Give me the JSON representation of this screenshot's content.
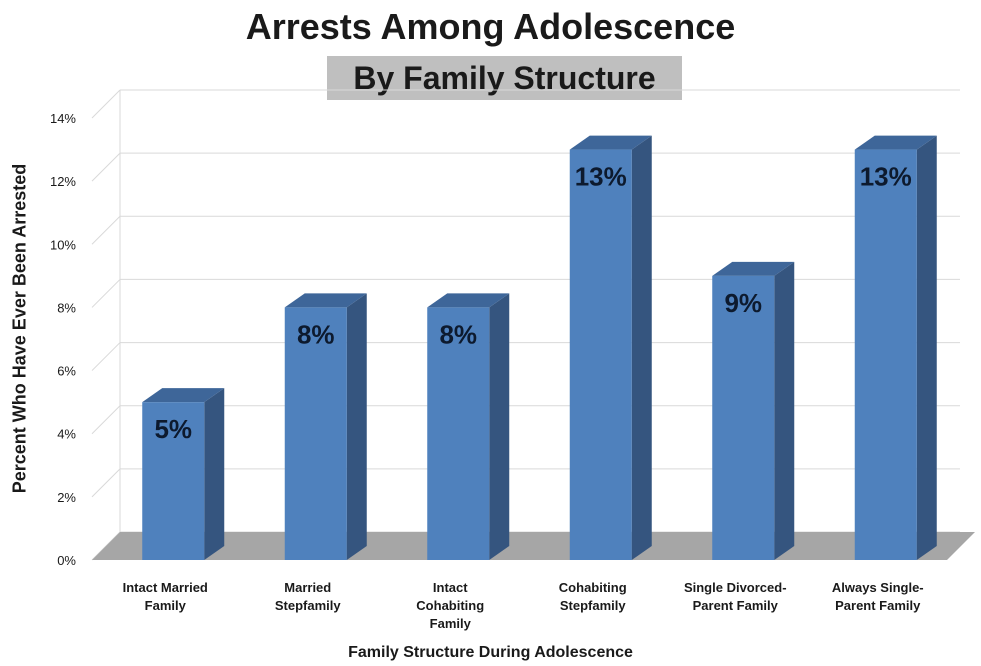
{
  "chart_data": {
    "type": "bar",
    "title": "Arrests Among Adolescence",
    "subtitle": "By Family Structure",
    "xlabel": "Family Structure During Adolescence",
    "ylabel": "Percent Who Have Ever Been Arrested",
    "categories": [
      [
        "Intact Married",
        "Family"
      ],
      [
        "Married",
        "Stepfamily"
      ],
      [
        "Intact",
        "Cohabiting",
        "Family"
      ],
      [
        "Cohabiting",
        "Stepfamily"
      ],
      [
        "Single Divorced-",
        "Parent Family"
      ],
      [
        "Always Single-",
        "Parent Family"
      ]
    ],
    "values": [
      5,
      8,
      8,
      13,
      9,
      13
    ],
    "data_labels": [
      "5%",
      "8%",
      "8%",
      "13%",
      "9%",
      "13%"
    ],
    "yticks": [
      "0%",
      "2%",
      "4%",
      "6%",
      "8%",
      "10%",
      "12%",
      "14%"
    ],
    "ylim": [
      0,
      14
    ],
    "grid": true,
    "style": "3d",
    "colors": {
      "bar_front": "#4f81bd",
      "bar_side": "#35557f",
      "bar_top": "#3e6699",
      "floor": "#a6a6a6",
      "grid": "#d9d9d9",
      "text": "#1a1a1a"
    }
  }
}
